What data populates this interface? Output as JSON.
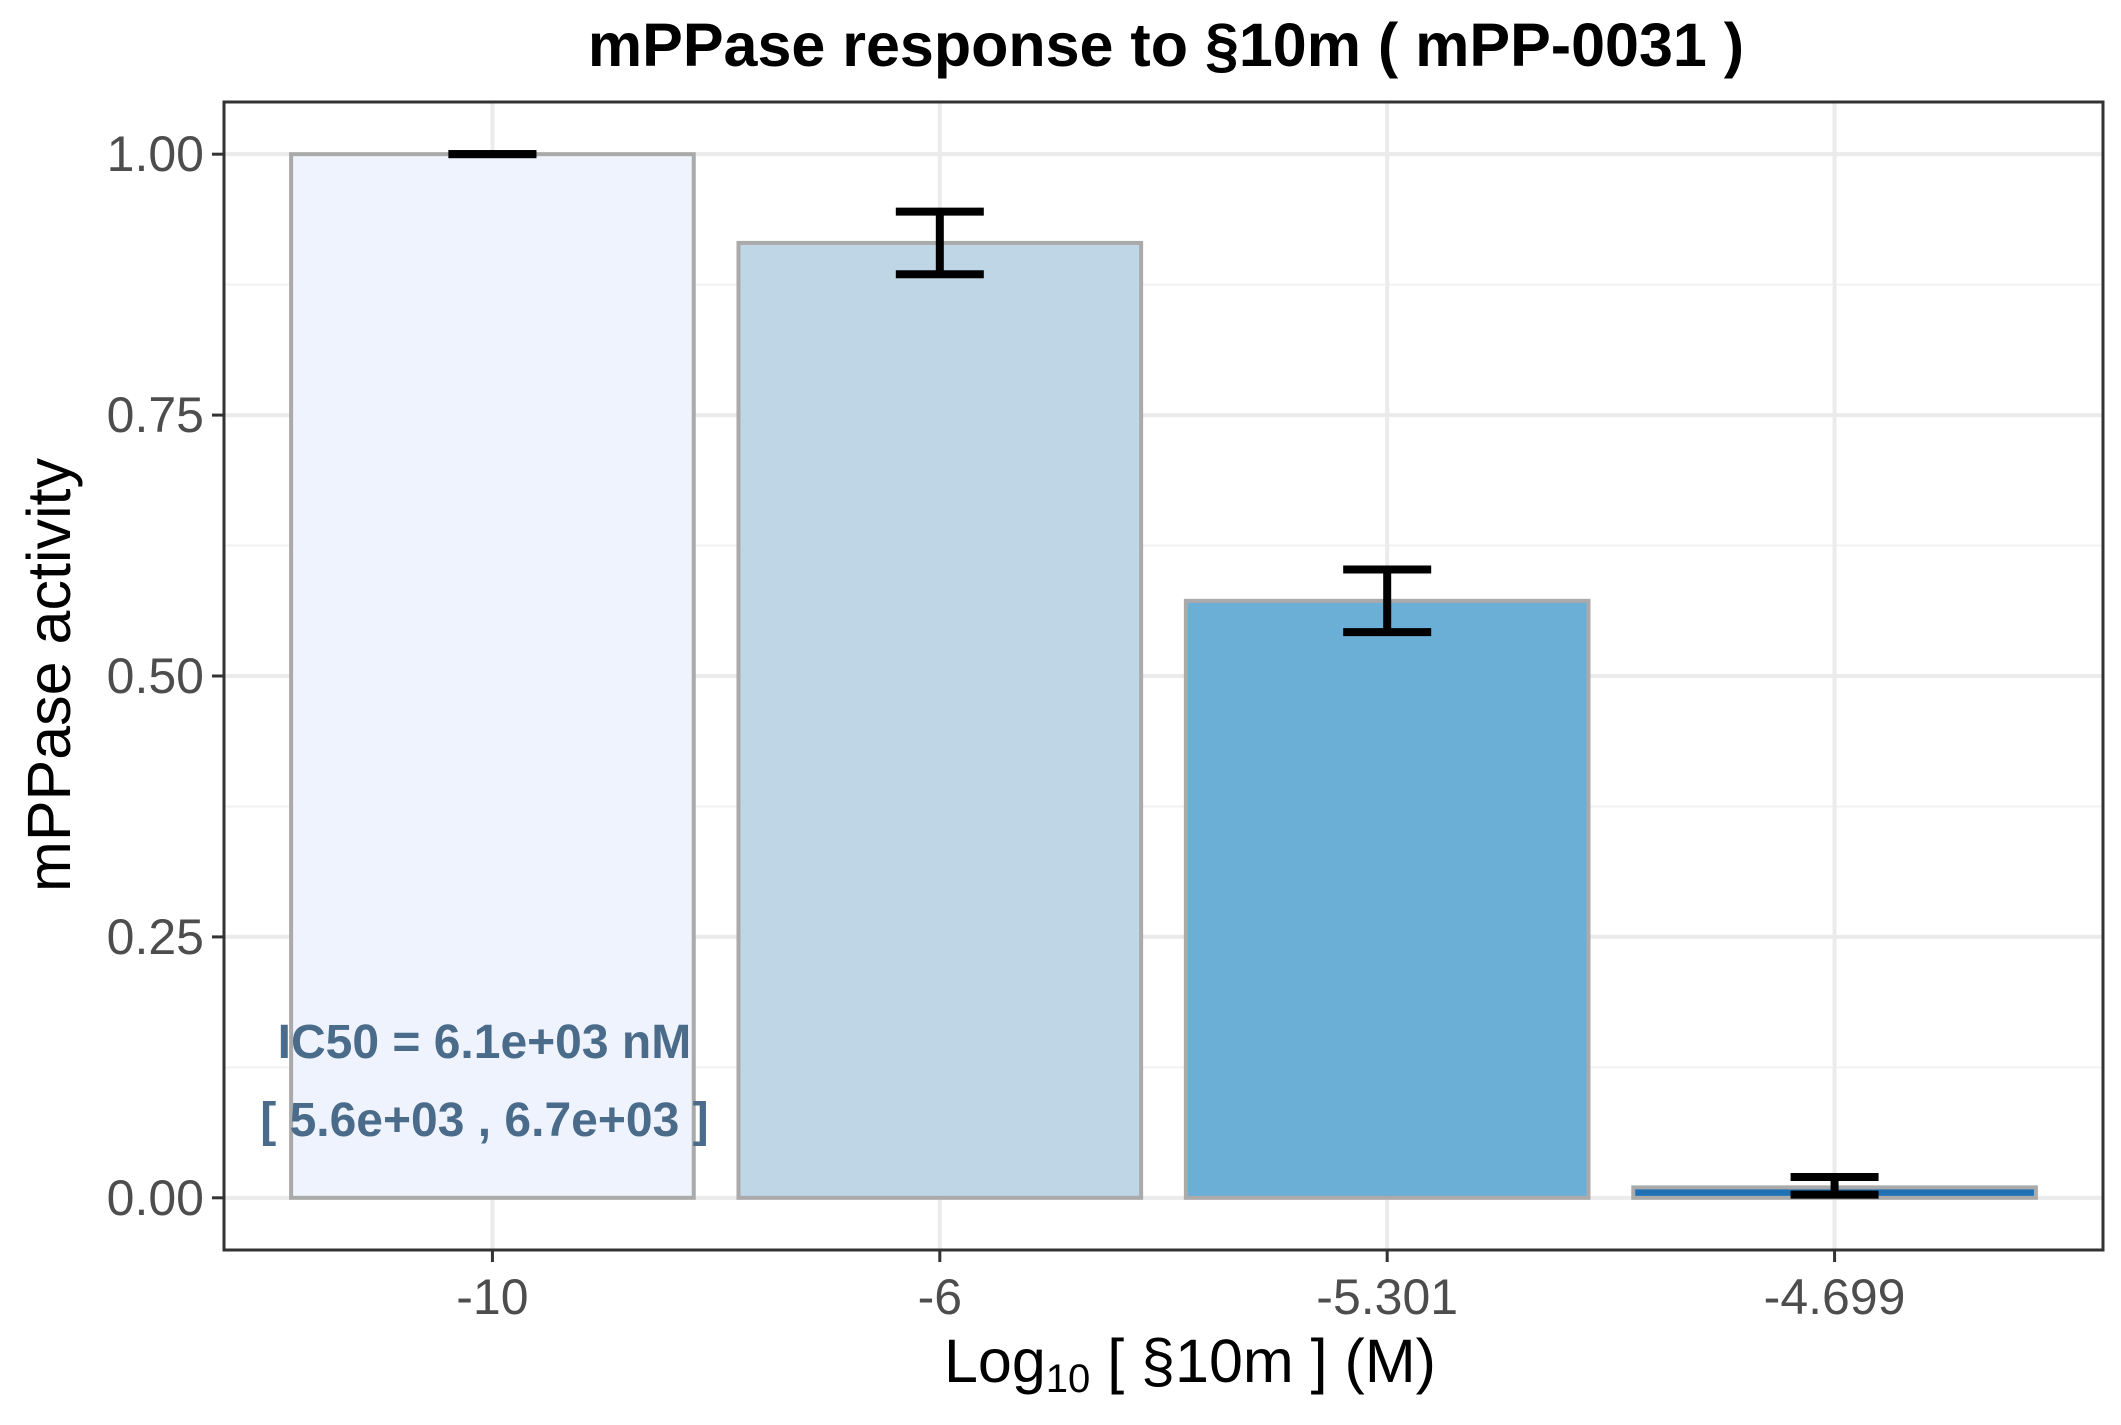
{
  "chart_data": {
    "type": "bar",
    "title": "mPPase response to §10m ( mPP-0031 )",
    "xlabel": {
      "prefix": "Log",
      "subscript": "10",
      "suffix": " [ §10m ] (M)"
    },
    "ylabel": "mPPase activity",
    "categories": [
      "-10",
      "-6",
      "-5.301",
      "-4.699"
    ],
    "values": [
      1.0,
      0.915,
      0.572,
      0.01
    ],
    "error_low": [
      1.0,
      0.885,
      0.542,
      0.003
    ],
    "error_high": [
      1.0,
      0.945,
      0.602,
      0.02
    ],
    "bar_colors": [
      "#eef3fd",
      "#bfd6e6",
      "#6baed6",
      "#2171b5"
    ],
    "bar_border_color": "#aaaaaa",
    "ylim": [
      -0.05,
      1.05
    ],
    "yticks": [
      0.0,
      0.25,
      0.5,
      0.75,
      1.0
    ],
    "ytick_labels": [
      "0.00",
      "0.25",
      "0.50",
      "0.75",
      "1.00"
    ],
    "grid": true,
    "annotations": [
      "IC50 = 6.1e+03 nM",
      "[ 5.6e+03 , 6.7e+03 ]"
    ]
  }
}
